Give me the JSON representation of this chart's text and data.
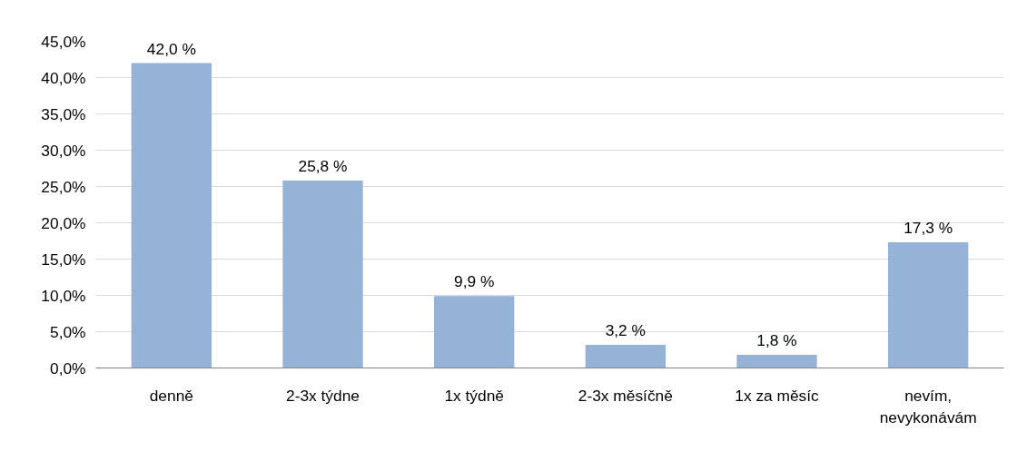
{
  "chart_data": {
    "type": "bar",
    "categories": [
      "denně",
      "2-3x týdne",
      "1x týdně",
      "2-3x měsíčně",
      "1x za měsíc",
      "nevím, nevykonávám"
    ],
    "values": [
      42.0,
      25.8,
      9.9,
      3.2,
      1.8,
      17.3
    ],
    "value_labels": [
      "42,0 %",
      "25,8 %",
      "9,9 %",
      "3,2 %",
      "1,8 %",
      "17,3 %"
    ],
    "color": "#95b3d7",
    "ylim": [
      0,
      45
    ],
    "yticks": [
      {
        "value": 0,
        "label": "0,0%"
      },
      {
        "value": 5,
        "label": "5,0%"
      },
      {
        "value": 10,
        "label": "10,0%"
      },
      {
        "value": 15,
        "label": "15,0%"
      },
      {
        "value": 20,
        "label": "20,0%"
      },
      {
        "value": 25,
        "label": "25,0%"
      },
      {
        "value": 30,
        "label": "30,0%"
      },
      {
        "value": 35,
        "label": "35,0%"
      },
      {
        "value": 40,
        "label": "40,0%"
      },
      {
        "value": 45,
        "label": "45,0%"
      }
    ],
    "grid": "y"
  }
}
